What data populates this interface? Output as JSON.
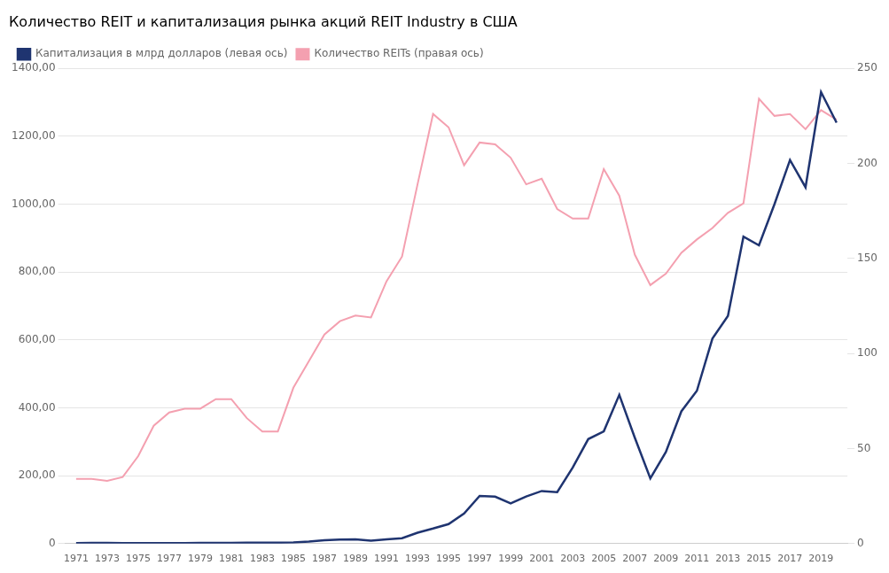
{
  "chart_data": {
    "type": "line",
    "title": "Количество REIT и капитализация рынка акций REIT Industry в США",
    "x": [
      1971,
      1972,
      1973,
      1974,
      1975,
      1976,
      1977,
      1978,
      1979,
      1980,
      1981,
      1982,
      1983,
      1984,
      1985,
      1986,
      1987,
      1988,
      1989,
      1990,
      1991,
      1992,
      1993,
      1994,
      1995,
      1996,
      1997,
      1998,
      1999,
      2000,
      2001,
      2002,
      2003,
      2004,
      2005,
      2006,
      2007,
      2008,
      2009,
      2010,
      2011,
      2012,
      2013,
      2014,
      2015,
      2016,
      2017,
      2018,
      2019,
      2020
    ],
    "xlim": [
      1970.3,
      2020.7
    ],
    "xticks": [
      1971,
      1973,
      1975,
      1977,
      1979,
      1981,
      1983,
      1985,
      1987,
      1989,
      1991,
      1993,
      1995,
      1997,
      1999,
      2001,
      2003,
      2005,
      2007,
      2009,
      2011,
      2013,
      2015,
      2017,
      2019
    ],
    "ylim": [
      0,
      1400
    ],
    "yticks": [
      0,
      {
        "value": 200,
        "label": "200,00"
      },
      {
        "value": 400,
        "label": "400,00"
      },
      {
        "value": 600,
        "label": "600,00"
      },
      {
        "value": 800,
        "label": "800,00"
      },
      {
        "value": 1000,
        "label": "1000,00"
      },
      {
        "value": 1200,
        "label": "1200,00"
      },
      {
        "value": 1400,
        "label": "1400,00"
      }
    ],
    "y2lim": [
      0,
      250
    ],
    "y2ticks": [
      0,
      50,
      100,
      150,
      200,
      250
    ],
    "grid": true,
    "legend": "upper left",
    "series": [
      {
        "name": "Капитализация в млрд долларов (левая ось)",
        "color": "#1f3470",
        "values": [
          1.5,
          1.9,
          1.8,
          1.4,
          1.5,
          1.7,
          1.6,
          1.5,
          2.0,
          2.3,
          2.4,
          2.5,
          2.5,
          2.6,
          3.7,
          6.0,
          9.7,
          11.7,
          12.3,
          8.7,
          12.3,
          15.9,
          32.2,
          44.3,
          57.5,
          88.8,
          140.5,
          138.3,
          118.6,
          138.7,
          154.9,
          151.4,
          224.2,
          307.9,
          330.7,
          438.1,
          312.0,
          192.3,
          269.8,
          389.6,
          450.2,
          603.9,
          670.6,
          904.2,
          878.7,
          1000.0,
          1130.0,
          1049.7,
          1330.0,
          1240.0
        ]
      },
      {
        "name": "Количество REITs (правая ось)",
        "color": "#f4a0b0",
        "axis": "y2",
        "values": [
          34,
          34,
          33,
          35,
          46,
          62,
          69,
          71,
          71,
          76,
          76,
          66,
          59,
          59,
          82,
          96,
          110,
          117,
          120,
          119,
          138,
          151,
          189,
          226,
          219,
          199,
          211,
          210,
          203,
          189,
          192,
          176,
          171,
          171,
          197,
          183,
          152,
          136,
          142,
          153,
          160,
          166,
          174,
          179,
          234,
          225,
          226,
          218,
          228,
          223
        ]
      }
    ]
  }
}
